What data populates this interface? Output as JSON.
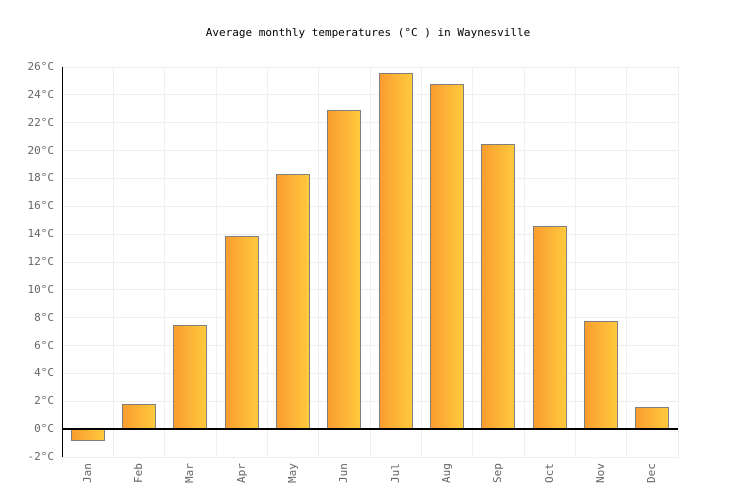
{
  "chart_data": {
    "type": "bar",
    "title": "Average monthly temperatures (°C ) in Waynesville",
    "categories": [
      "Jan",
      "Feb",
      "Mar",
      "Apr",
      "May",
      "Jun",
      "Jul",
      "Aug",
      "Sep",
      "Oct",
      "Nov",
      "Dec"
    ],
    "values": [
      -0.8,
      1.8,
      7.5,
      13.9,
      18.3,
      22.9,
      25.6,
      24.8,
      20.5,
      14.6,
      7.8,
      1.6
    ],
    "unit": "°C",
    "xlabel": "",
    "ylabel": "",
    "ylim": [
      -2,
      26
    ],
    "y_tick_step": 2,
    "y_tick_labels": [
      "26°C",
      "24°C",
      "22°C",
      "20°C",
      "18°C",
      "16°C",
      "14°C",
      "12°C",
      "10°C",
      "8°C",
      "6°C",
      "4°C",
      "2°C",
      "0°C",
      "-2°C"
    ],
    "grid": true,
    "legend": false,
    "colors": {
      "bar_gradient_start": "#FA9D30",
      "bar_gradient_end": "#FFC93D",
      "bar_border": "#7F7F7F",
      "axis": "#000000",
      "gridline": "#EEEEEE",
      "tick_label": "#666666",
      "title": "#000000",
      "background": "#FFFFFF"
    }
  }
}
